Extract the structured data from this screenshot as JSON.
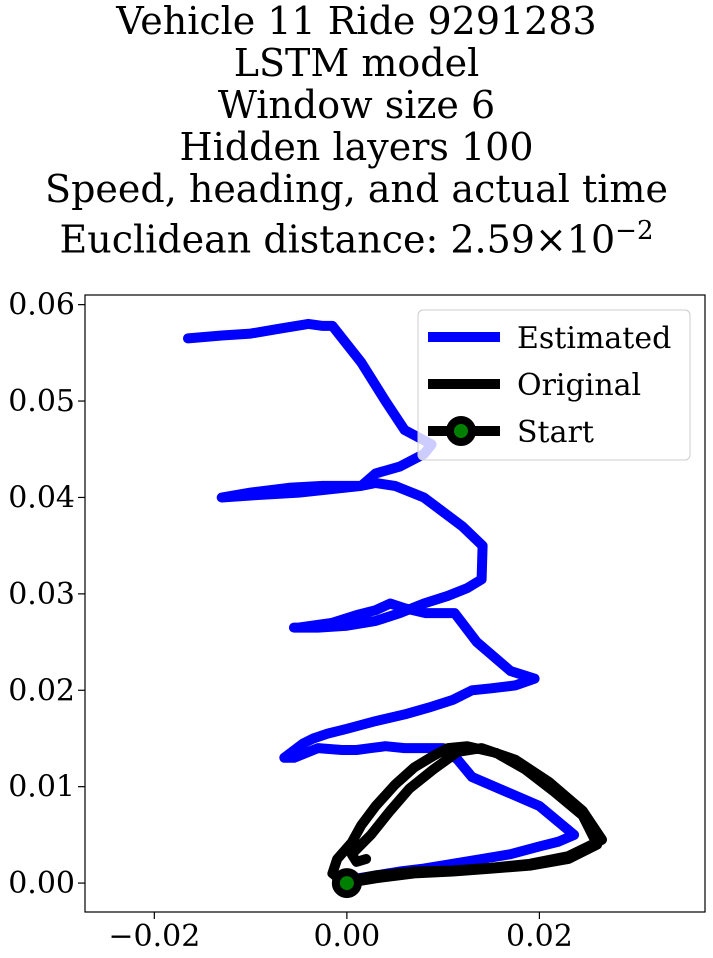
{
  "chart_data": {
    "type": "line",
    "title_lines": [
      "Vehicle 11 Ride 9291283",
      "LSTM model",
      "Window size 6",
      "Hidden layers 100",
      "Speed, heading, and actual time"
    ],
    "title_metric_label": "Euclidean distance: ",
    "title_metric_mantissa": "2.59",
    "title_metric_times": "×10",
    "title_metric_exponent": "−2",
    "xlabel": "",
    "ylabel": "",
    "xlim": [
      -0.0272,
      0.0372
    ],
    "ylim": [
      -0.003,
      0.061
    ],
    "xticks": [
      -0.02,
      0.0,
      0.02
    ],
    "xtick_labels": [
      "−0.02",
      "0.00",
      "0.02"
    ],
    "yticks": [
      0.0,
      0.01,
      0.02,
      0.03,
      0.04,
      0.05,
      0.06
    ],
    "ytick_labels": [
      "0.00",
      "0.01",
      "0.02",
      "0.03",
      "0.04",
      "0.05",
      "0.06"
    ],
    "grid": false,
    "legend_position": "top-right",
    "series": [
      {
        "name": "Estimated",
        "color": "#0000ff",
        "x": [
          0.0,
          0.0012,
          0.003,
          0.0055,
          0.008,
          0.011,
          0.014,
          0.017,
          0.02,
          0.022,
          0.0236,
          0.02,
          0.0165,
          0.013,
          0.0115,
          0.01,
          0.0082,
          0.006,
          0.004,
          0.0025,
          0.001,
          -0.0005,
          -0.003,
          -0.0055,
          -0.0065,
          -0.0045,
          -0.0035,
          -0.002,
          0.0,
          0.003,
          0.006,
          0.0085,
          0.011,
          0.013,
          0.015,
          0.0175,
          0.0195,
          0.017,
          0.0135,
          0.0112,
          0.0082,
          0.006,
          0.0045,
          0.003,
          0.001,
          -0.0015,
          -0.005,
          -0.0055,
          -0.003,
          0.0,
          0.003,
          0.0055,
          0.008,
          0.0105,
          0.0125,
          0.014,
          0.0141,
          0.012,
          0.01,
          0.008,
          0.005,
          0.003,
          0.0015,
          -0.0025,
          -0.006,
          -0.01,
          -0.013,
          -0.01,
          -0.005,
          0.0015,
          0.003,
          0.0055,
          0.008,
          0.0088,
          0.006,
          0.004,
          0.0015,
          -0.0015,
          -0.0025,
          -0.004,
          -0.007,
          -0.01,
          -0.013,
          -0.0165
        ],
        "y": [
          0.0,
          0.0005,
          0.0008,
          0.0012,
          0.0015,
          0.002,
          0.0025,
          0.003,
          0.0038,
          0.0043,
          0.005,
          0.008,
          0.0095,
          0.011,
          0.0128,
          0.014,
          0.014,
          0.014,
          0.0142,
          0.014,
          0.0138,
          0.0138,
          0.014,
          0.013,
          0.013,
          0.0145,
          0.015,
          0.0155,
          0.016,
          0.0168,
          0.0175,
          0.0182,
          0.019,
          0.02,
          0.0202,
          0.0205,
          0.0212,
          0.022,
          0.025,
          0.028,
          0.028,
          0.0285,
          0.029,
          0.0283,
          0.0278,
          0.027,
          0.0265,
          0.0265,
          0.0265,
          0.0267,
          0.0272,
          0.028,
          0.029,
          0.0298,
          0.0306,
          0.0315,
          0.035,
          0.037,
          0.0385,
          0.04,
          0.0412,
          0.0415,
          0.0412,
          0.0412,
          0.041,
          0.0405,
          0.04,
          0.0402,
          0.0405,
          0.0412,
          0.0425,
          0.0432,
          0.0445,
          0.0455,
          0.047,
          0.05,
          0.054,
          0.0578,
          0.0578,
          0.058,
          0.0575,
          0.057,
          0.0568,
          0.0565
        ]
      },
      {
        "name": "Original",
        "color": "#000000",
        "x": [
          0.0,
          0.003,
          0.007,
          0.011,
          0.015,
          0.019,
          0.023,
          0.026,
          0.0245,
          0.0215,
          0.0185,
          0.0155,
          0.0125,
          0.0105,
          0.009,
          0.007,
          0.005,
          0.003,
          0.0015,
          0.0005,
          -0.001,
          -0.0015,
          -0.0005,
          0.001,
          0.0015,
          0.003,
          0.007,
          0.011,
          0.015,
          0.019,
          0.023,
          0.0265,
          0.0245,
          0.021,
          0.0175,
          0.014,
          0.0115,
          0.009,
          0.0065,
          0.0045,
          0.0025,
          0.001,
          0.0005,
          0.001,
          0.002
        ],
        "y": [
          0.0,
          0.0005,
          0.001,
          0.0012,
          0.0015,
          0.0018,
          0.0025,
          0.004,
          0.007,
          0.0095,
          0.0118,
          0.0135,
          0.0142,
          0.014,
          0.0132,
          0.012,
          0.0102,
          0.008,
          0.006,
          0.0042,
          0.0025,
          0.001,
          0.0002,
          0.0002,
          0.0005,
          0.0008,
          0.0012,
          0.0013,
          0.0016,
          0.002,
          0.0028,
          0.0045,
          0.0075,
          0.0105,
          0.0128,
          0.014,
          0.0136,
          0.0118,
          0.0098,
          0.0075,
          0.005,
          0.0035,
          0.003,
          0.0022,
          0.0025
        ]
      }
    ],
    "start_point": {
      "name": "Start",
      "x": 0.0,
      "y": 0.0,
      "marker_face": "#008000",
      "marker_edge": "#000000"
    }
  }
}
